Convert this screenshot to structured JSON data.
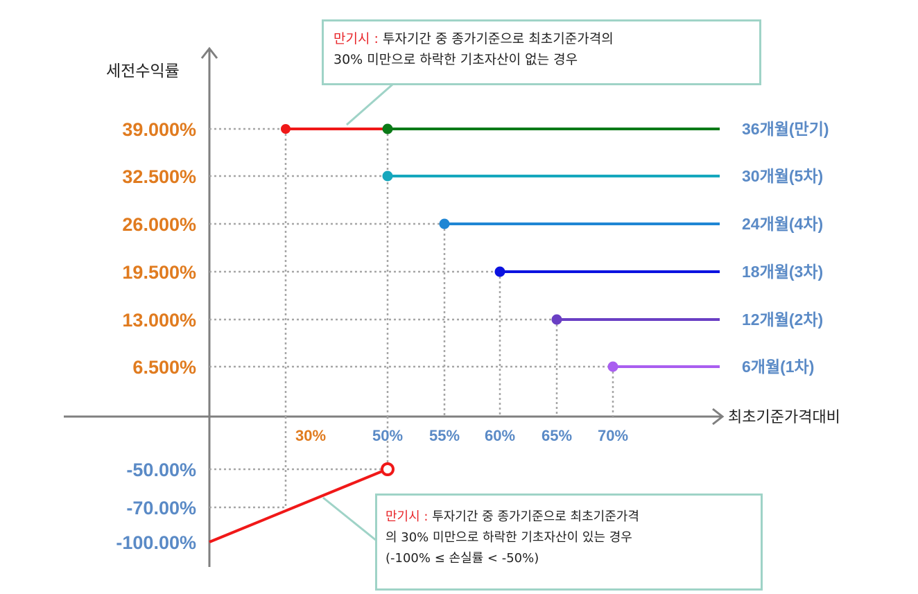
{
  "chart_data": {
    "type": "line",
    "ylabel": "세전수익률",
    "xlabel": "최초기준가격대비",
    "y_tick_labels": [
      "39.000%",
      "32.500%",
      "26.000%",
      "19.500%",
      "13.000%",
      "6.500%",
      "-50.00%",
      "-70.00%",
      "-100.00%"
    ],
    "x_tick_labels": [
      "30%",
      "50%",
      "55%",
      "60%",
      "65%",
      "70%"
    ],
    "series": [
      {
        "name": "36개월(만기)",
        "start_x": 50,
        "y": 39.0,
        "color": "#0b7a17"
      },
      {
        "name": "30개월(5차)",
        "start_x": 50,
        "y": 32.5,
        "color": "#16a7bd"
      },
      {
        "name": "24개월(4차)",
        "start_x": 55,
        "y": 26.0,
        "color": "#1f86d4"
      },
      {
        "name": "18개월(3차)",
        "start_x": 60,
        "y": 19.5,
        "color": "#0b12e0"
      },
      {
        "name": "12개월(2차)",
        "start_x": 65,
        "y": 13.0,
        "color": "#6a3fc4"
      },
      {
        "name": "6개월(1차)",
        "start_x": 70,
        "y": 6.5,
        "color": "#a95ef0"
      }
    ],
    "maturity_upper_segment": {
      "x": [
        30,
        50
      ],
      "y": 39.0,
      "color": "#f01818"
    },
    "maturity_loss_line": {
      "x": [
        0,
        50
      ],
      "y": [
        -100,
        -50
      ],
      "color": "#f01818"
    },
    "reference_points": [
      {
        "x": 30,
        "y": -70
      }
    ],
    "axis_color": "#7f7f7f",
    "guide_color": "#a6a6a6",
    "positive_tick_color": "#e07b1f",
    "negative_tick_color": "#5a8ac6"
  },
  "callouts": {
    "top": {
      "highlight": "만기시 :",
      "line1": " 투자기간 중 종가기준으로 최초기준가격의",
      "line2": "30% 미만으로 하락한 기초자산이 없는 경우"
    },
    "bottom": {
      "highlight": "만기시 :",
      "line1": " 투자기간 중 종가기준으로 최초기준가격",
      "line2": "의 30% 미만으로 하락한 기초자산이 있는 경우",
      "line3": "(-100% ≤ 손실률 < -50%)"
    }
  }
}
